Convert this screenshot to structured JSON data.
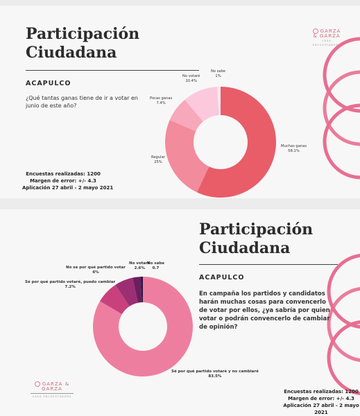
{
  "colors": {
    "accent": "#e86e91",
    "brand": "#c96b7c"
  },
  "panel1": {
    "title_line1": "Participación",
    "title_line2": "Ciudadana",
    "location": "ACAPULCO",
    "question": "¿Qué tantas ganas tiene de ir a votar en junio de este año?",
    "info": [
      "Encuestas realizadas: 1200",
      "Margen de error: +/- 4.3",
      "Aplicación 27 abril - 2 mayo 2021"
    ],
    "logo_name": "GARZA & GARZA",
    "logo_sub": "CASA ENCUESTADORA"
  },
  "panel2": {
    "title_line1": "Participación",
    "title_line2": "Ciudadana",
    "location": "ACAPULCO",
    "question": "En campaña los partidos y candidatos harán muchas cosas para convencerlo de votar por ellos, ¿ya sabría por quien votar o podrán convencerlo de cambiar de opinión?",
    "info": [
      "Encuestas realizadas: 1200",
      "Margen de error: +/- 4.3",
      "Aplicación 27 abril - 2 mayo",
      "2021"
    ],
    "logo_name": "GARZA & GARZA",
    "logo_sub": "CASA ENCUESTADORA"
  },
  "chart_data": [
    {
      "type": "pie",
      "categories": [
        "Muchas ganas",
        "Regular",
        "Pocas ganas",
        "No votaré",
        "No sabe"
      ],
      "values": [
        58.1,
        25,
        7.4,
        10.4,
        1
      ],
      "labels": [
        "58.1%",
        "25%",
        "7.4%",
        "10.4%",
        "1%"
      ],
      "colors": [
        "#e85d68",
        "#f28b9c",
        "#f7a8ba",
        "#fbc8dc",
        "#fce8f0"
      ]
    },
    {
      "type": "pie",
      "categories": [
        "Sé por qué partido votaré y no cambiaré",
        "Sé por qué partido votaré, puedo cambiar",
        "No se por qué partido votar",
        "No votaré",
        "No sabe"
      ],
      "values": [
        83.5,
        7.2,
        6,
        2.6,
        0.7
      ],
      "labels": [
        "83.5%",
        "7.2%",
        "6%",
        "2.6%",
        "0.7"
      ],
      "colors": [
        "#ee7e9f",
        "#c8417c",
        "#9c2f74",
        "#6a1f5e",
        "#2e1740"
      ]
    }
  ]
}
